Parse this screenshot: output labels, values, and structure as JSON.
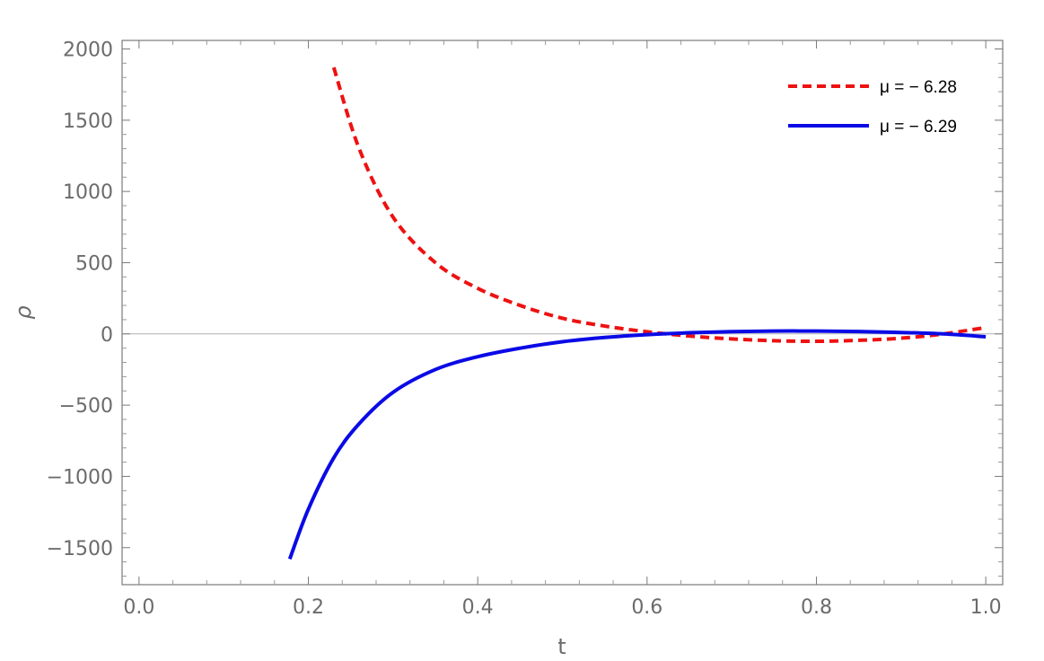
{
  "chart_data": {
    "type": "line",
    "title": "",
    "xlabel": "t",
    "ylabel": "ρ",
    "xlim": [
      -0.02,
      1.02
    ],
    "ylim": [
      -1760,
      2060
    ],
    "xticks": [
      0.0,
      0.2,
      0.4,
      0.6,
      0.8,
      1.0
    ],
    "xtick_labels": [
      "0.0",
      "0.2",
      "0.4",
      "0.6",
      "0.8",
      "1.0"
    ],
    "yticks": [
      -1500,
      -1000,
      -500,
      0,
      500,
      1000,
      1500,
      2000
    ],
    "ytick_labels": [
      "−1500",
      "−1000",
      "−500",
      "0",
      "500",
      "1000",
      "1500",
      "2000"
    ],
    "grid": false,
    "legend_position": "top-right",
    "series": [
      {
        "name": "μ = − 6.28",
        "color": "#ee1111",
        "style": "dashed",
        "x": [
          0.23,
          0.26,
          0.3,
          0.35,
          0.4,
          0.45,
          0.5,
          0.55,
          0.6,
          0.65,
          0.7,
          0.75,
          0.8,
          0.85,
          0.9,
          0.95,
          1.0
        ],
        "y": [
          1870,
          1300,
          820,
          500,
          320,
          200,
          110,
          55,
          15,
          -15,
          -35,
          -48,
          -52,
          -45,
          -30,
          0,
          45
        ]
      },
      {
        "name": "μ = − 6.29",
        "color": "#0a0ae6",
        "style": "solid",
        "x": [
          0.178,
          0.2,
          0.23,
          0.26,
          0.3,
          0.35,
          0.4,
          0.45,
          0.5,
          0.55,
          0.6,
          0.65,
          0.7,
          0.75,
          0.8,
          0.85,
          0.9,
          0.95,
          1.0
        ],
        "y": [
          -1580,
          -1230,
          -870,
          -630,
          -410,
          -250,
          -160,
          -100,
          -55,
          -25,
          -5,
          8,
          16,
          20,
          20,
          17,
          10,
          0,
          -20
        ]
      }
    ]
  }
}
